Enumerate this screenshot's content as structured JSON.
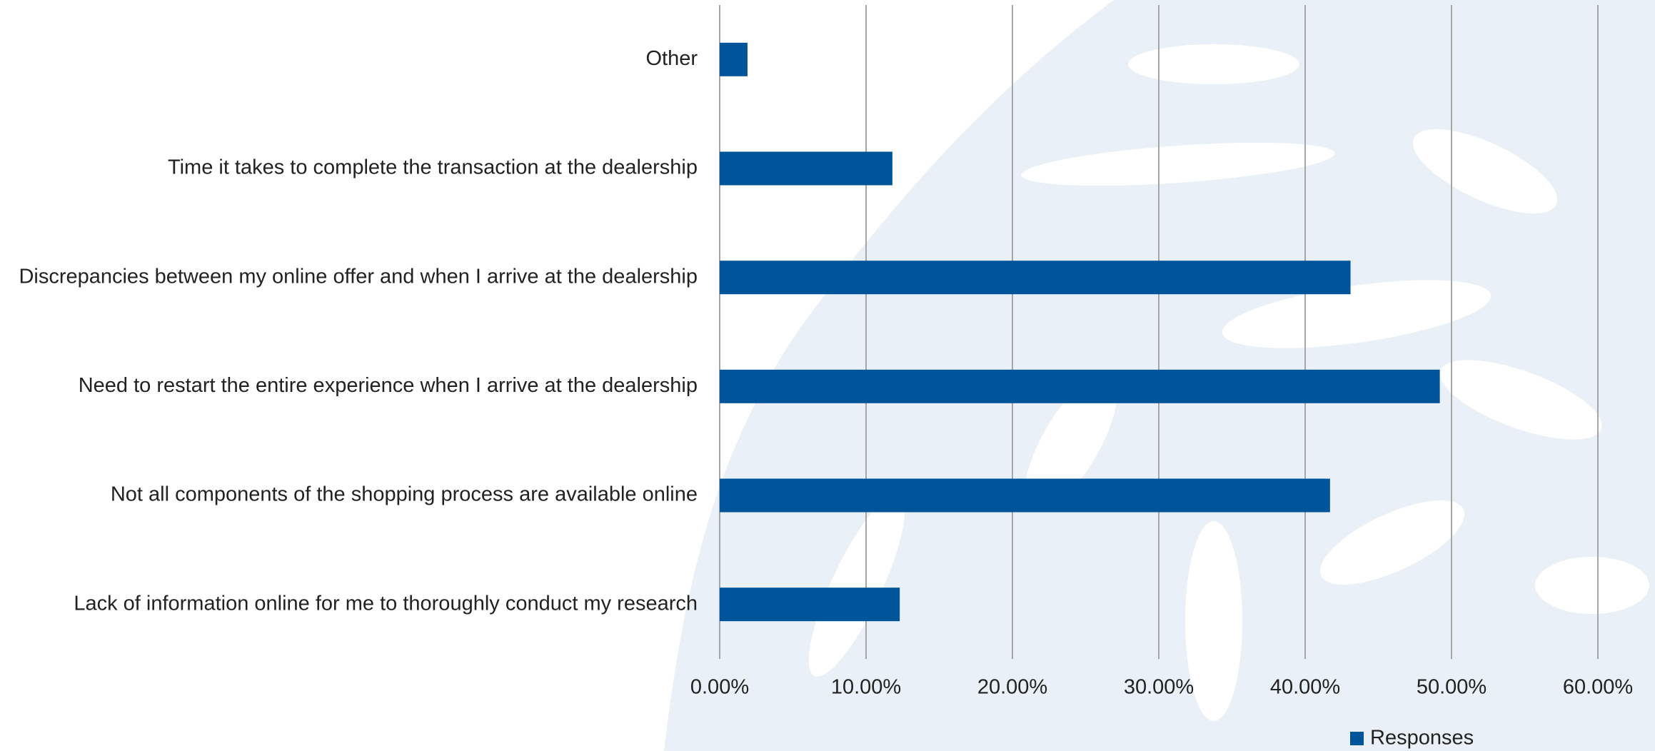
{
  "chart_data": {
    "type": "bar",
    "orientation": "horizontal",
    "categories": [
      "Other",
      "Time it takes to complete the transaction at the dealership",
      "Discrepancies between my online offer and when I arrive at the dealership",
      "Need to restart the entire experience when I arrive at the dealership",
      "Not all components of the shopping process are available online",
      "Lack of information online for me to thoroughly conduct my research"
    ],
    "series": [
      {
        "name": "Responses",
        "color": "#00549a",
        "values": [
          1.9,
          11.8,
          43.1,
          49.2,
          41.7,
          12.3
        ]
      }
    ],
    "xlim": [
      0,
      60
    ],
    "xticks": [
      {
        "value": 0,
        "label": "0.00%"
      },
      {
        "value": 10,
        "label": "10.00%"
      },
      {
        "value": 20,
        "label": "20.00%"
      },
      {
        "value": 30,
        "label": "30.00%"
      },
      {
        "value": 40,
        "label": "40.00%"
      },
      {
        "value": 50,
        "label": "50.00%"
      },
      {
        "value": 60,
        "label": "60.00%"
      }
    ],
    "grid": true,
    "legend": "bottom-right"
  }
}
